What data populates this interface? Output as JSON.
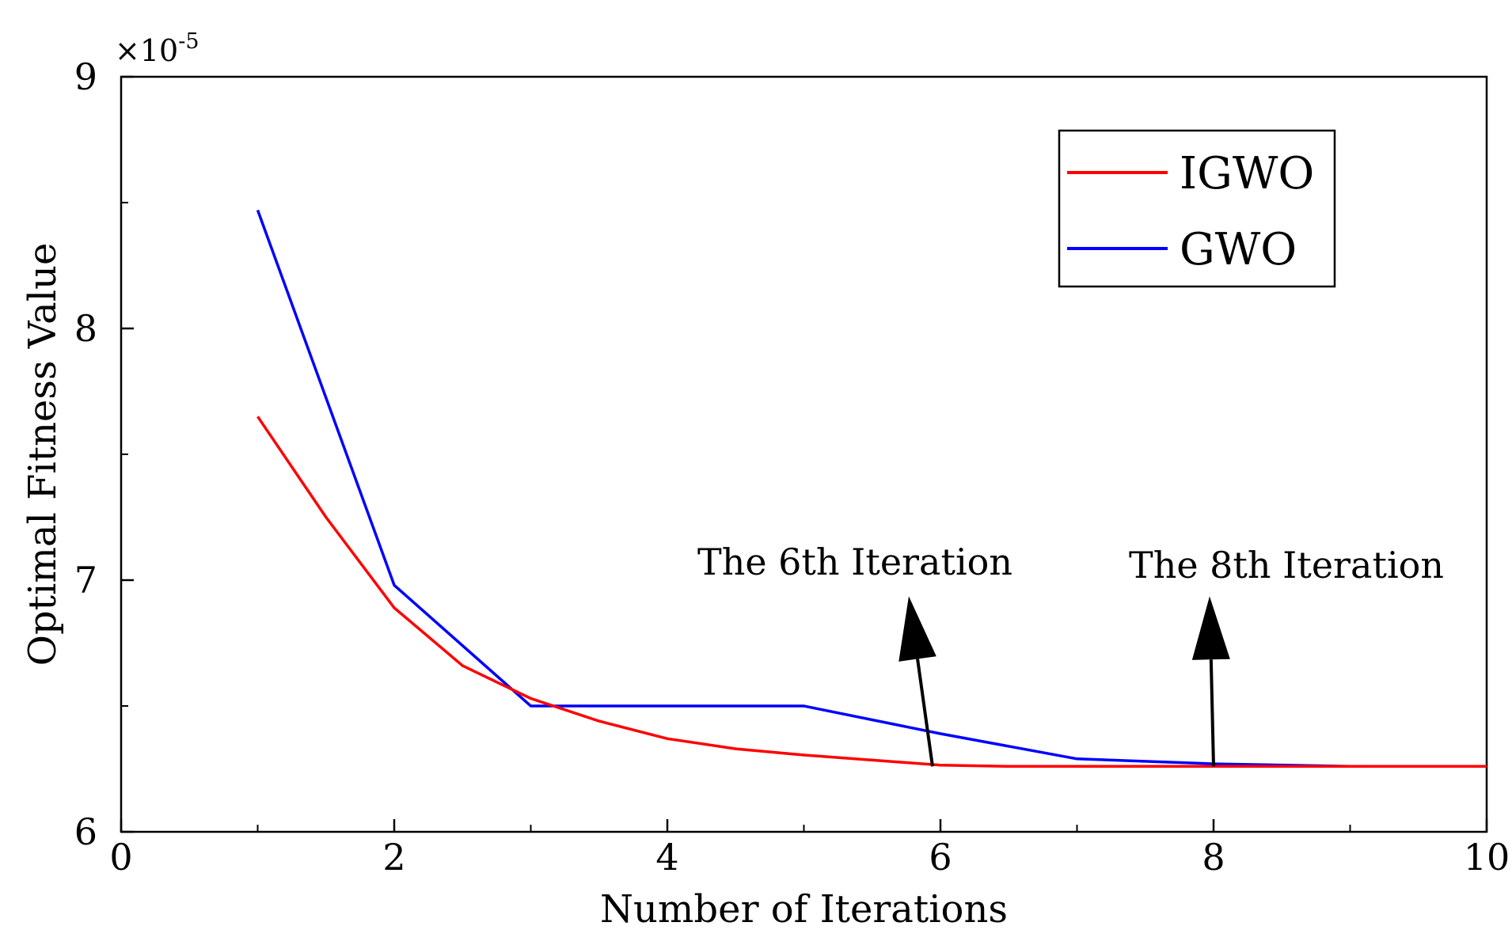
{
  "chart_data": {
    "type": "line",
    "title": "",
    "xlabel": "Number of Iterations",
    "ylabel": "Optimal Fitness Value",
    "xlim": [
      0,
      10
    ],
    "ylim": [
      6,
      9
    ],
    "y_multiplier": {
      "base": "×10",
      "exponent": "-5"
    },
    "x_ticks": [
      0,
      2,
      4,
      6,
      8,
      10
    ],
    "x_tick_labels": [
      "0",
      "2",
      "4",
      "6",
      "8",
      "10"
    ],
    "x_minor_ticks": [
      1,
      3,
      5,
      7,
      9
    ],
    "y_ticks": [
      6,
      7,
      8,
      9
    ],
    "y_tick_labels": [
      "6",
      "7",
      "8",
      "9"
    ],
    "y_minor_ticks": [
      6.5,
      7.5,
      8.5
    ],
    "grid": false,
    "legend_position": "top-right",
    "series": [
      {
        "name": "IGWO",
        "color": "#ff0000",
        "x": [
          1,
          1.5,
          2,
          2.5,
          3,
          3.5,
          4,
          4.5,
          5,
          5.5,
          6,
          6.5,
          7,
          8,
          9,
          10
        ],
        "values": [
          7.65,
          7.25,
          6.89,
          6.66,
          6.53,
          6.44,
          6.37,
          6.33,
          6.305,
          6.285,
          6.265,
          6.26,
          6.26,
          6.26,
          6.26,
          6.26
        ]
      },
      {
        "name": "GWO",
        "color": "#0000ff",
        "x": [
          1,
          2,
          3,
          4,
          5,
          6,
          7,
          8,
          9,
          10
        ],
        "values": [
          8.47,
          6.98,
          6.5,
          6.5,
          6.5,
          6.39,
          6.29,
          6.27,
          6.26,
          6.26
        ]
      }
    ],
    "annotations": [
      {
        "text": "The 6th Iteration",
        "x": 6,
        "y": 6.26
      },
      {
        "text": "The 8th Iteration",
        "x": 8,
        "y": 6.26
      }
    ]
  }
}
